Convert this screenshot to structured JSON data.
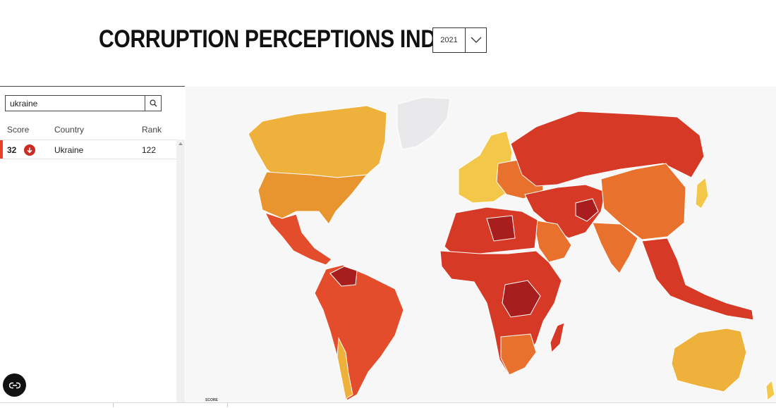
{
  "header": {
    "title": "CORRUPTION PERCEPTIONS INDEX",
    "year_select": {
      "value": "2021",
      "icon": "chevron-down-icon"
    }
  },
  "search": {
    "value": "ukraine",
    "icon": "search-icon"
  },
  "table": {
    "columns": [
      "Score",
      "Country",
      "Rank"
    ],
    "rows": [
      {
        "score": "32",
        "trend": "down",
        "country": "Ukraine",
        "rank": "122"
      }
    ]
  },
  "map": {
    "legend_label": "SCORE",
    "colors": {
      "very_high": "#a81e1e",
      "high": "#d63a27",
      "medium_high": "#e44d2c",
      "medium": "#e8712d",
      "medium_low": "#e8952f",
      "low": "#eeb13b",
      "very_low": "#f3c84a",
      "no_data": "#e9e9ec",
      "ocean": "#f7f7f7"
    }
  },
  "fab": {
    "icon": "cookie-settings-icon"
  }
}
